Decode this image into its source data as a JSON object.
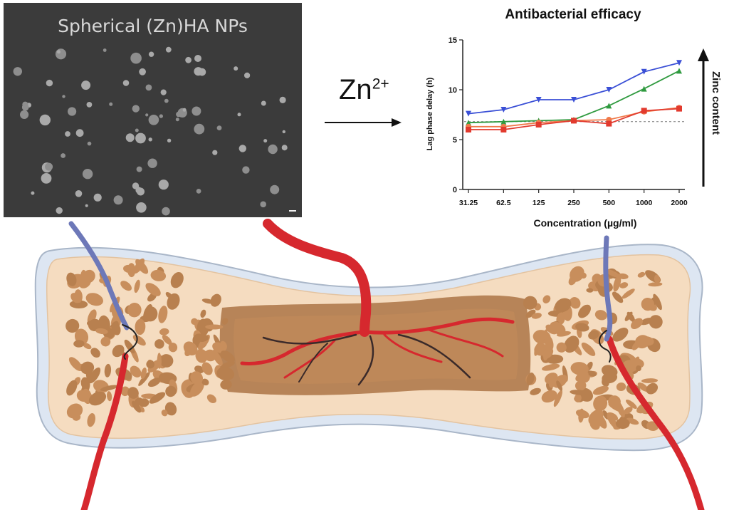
{
  "sem": {
    "title": "Spherical (Zn)HA NPs"
  },
  "arrow": {
    "ion_base": "Zn",
    "ion_charge": "2+"
  },
  "zinc_arrow_label": "Zinc content",
  "colors": {
    "blue_series": "#3a4fd6",
    "green_series": "#2f9a3f",
    "orange_series": "#f07a4a",
    "red_series": "#e23a2e",
    "bone_fill": "#f5dcc0",
    "bone_trabecular": "#c88e5c",
    "marrow": "#b07a4c",
    "artery": "#d6282e",
    "vein": "#6d78b8"
  },
  "chart_data": {
    "type": "line",
    "title": "Antibacterial efficacy",
    "xlabel": "Concentration (µg/ml)",
    "ylabel": "Lag phase delay (h)",
    "categories": [
      "31.25",
      "62.5",
      "125",
      "250",
      "500",
      "1000",
      "2000"
    ],
    "ylim": [
      0,
      15
    ],
    "yticks": [
      0,
      5,
      10,
      15
    ],
    "baseline": 6.8,
    "series": [
      {
        "color": "#3a4fd6",
        "marker": "triangle-down",
        "values": [
          7.6,
          8.0,
          9.0,
          9.0,
          10.0,
          11.8,
          12.7
        ]
      },
      {
        "color": "#2f9a3f",
        "marker": "triangle-up",
        "values": [
          6.7,
          6.8,
          6.9,
          7.0,
          8.4,
          10.1,
          11.9
        ]
      },
      {
        "color": "#f07a4a",
        "marker": "circle",
        "values": [
          6.3,
          6.3,
          6.7,
          6.9,
          7.0,
          7.8,
          8.2
        ]
      },
      {
        "color": "#e23a2e",
        "marker": "square",
        "values": [
          6.0,
          6.0,
          6.5,
          6.9,
          6.6,
          7.9,
          8.1
        ]
      }
    ]
  }
}
